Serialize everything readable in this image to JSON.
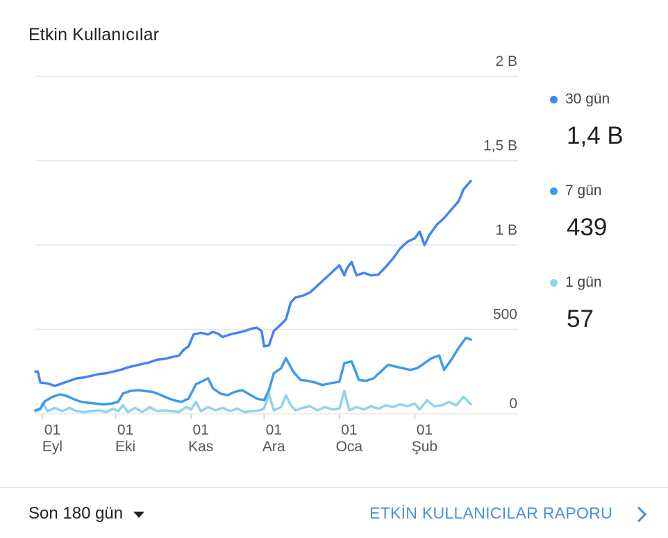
{
  "card": {
    "title": "Etkin Kullanıcılar"
  },
  "chart_data": {
    "type": "line",
    "ylim": [
      0,
      2000
    ],
    "y_ticks": [
      {
        "value": 0,
        "label": "0"
      },
      {
        "value": 500,
        "label": "500"
      },
      {
        "value": 1000,
        "label": "1 B"
      },
      {
        "value": 1500,
        "label": "1,5 B"
      },
      {
        "value": 2000,
        "label": "2 B"
      }
    ],
    "x_range": [
      "2023-08-29",
      "2024-02-24"
    ],
    "x_ticks": [
      {
        "date": "2023-09-01",
        "day": "01",
        "month": "Eyl"
      },
      {
        "date": "2023-10-01",
        "day": "01",
        "month": "Eki"
      },
      {
        "date": "2023-11-01",
        "day": "01",
        "month": "Kas"
      },
      {
        "date": "2023-12-01",
        "day": "01",
        "month": "Ara"
      },
      {
        "date": "2024-01-01",
        "day": "01",
        "month": "Oca"
      },
      {
        "date": "2024-02-01",
        "day": "01",
        "month": "Şub"
      }
    ],
    "grid": true,
    "legend_position": "right",
    "series": [
      {
        "name": "30 gün",
        "color": "#4285f4",
        "current_label": "1,4 B",
        "points": [
          [
            "2023-08-29",
            250
          ],
          [
            "2023-08-30",
            250
          ],
          [
            "2023-08-31",
            185
          ],
          [
            "2023-09-03",
            180
          ],
          [
            "2023-09-06",
            165
          ],
          [
            "2023-09-09",
            180
          ],
          [
            "2023-09-12",
            195
          ],
          [
            "2023-09-15",
            210
          ],
          [
            "2023-09-18",
            215
          ],
          [
            "2023-09-21",
            225
          ],
          [
            "2023-09-24",
            235
          ],
          [
            "2023-09-27",
            240
          ],
          [
            "2023-09-30",
            250
          ],
          [
            "2023-10-03",
            260
          ],
          [
            "2023-10-06",
            275
          ],
          [
            "2023-10-09",
            285
          ],
          [
            "2023-10-12",
            295
          ],
          [
            "2023-10-15",
            305
          ],
          [
            "2023-10-18",
            320
          ],
          [
            "2023-10-21",
            325
          ],
          [
            "2023-10-24",
            335
          ],
          [
            "2023-10-27",
            345
          ],
          [
            "2023-10-29",
            380
          ],
          [
            "2023-10-31",
            400
          ],
          [
            "2023-11-02",
            470
          ],
          [
            "2023-11-05",
            480
          ],
          [
            "2023-11-08",
            470
          ],
          [
            "2023-11-10",
            485
          ],
          [
            "2023-11-12",
            475
          ],
          [
            "2023-11-14",
            455
          ],
          [
            "2023-11-17",
            470
          ],
          [
            "2023-11-20",
            480
          ],
          [
            "2023-11-23",
            490
          ],
          [
            "2023-11-26",
            505
          ],
          [
            "2023-11-28",
            510
          ],
          [
            "2023-11-30",
            490
          ],
          [
            "2023-12-01",
            400
          ],
          [
            "2023-12-03",
            405
          ],
          [
            "2023-12-05",
            490
          ],
          [
            "2023-12-08",
            530
          ],
          [
            "2023-12-10",
            560
          ],
          [
            "2023-12-12",
            660
          ],
          [
            "2023-12-14",
            690
          ],
          [
            "2023-12-17",
            700
          ],
          [
            "2023-12-20",
            720
          ],
          [
            "2023-12-23",
            760
          ],
          [
            "2023-12-26",
            800
          ],
          [
            "2023-12-29",
            840
          ],
          [
            "2024-01-01",
            880
          ],
          [
            "2024-01-03",
            820
          ],
          [
            "2024-01-04",
            860
          ],
          [
            "2024-01-06",
            900
          ],
          [
            "2024-01-08",
            820
          ],
          [
            "2024-01-11",
            835
          ],
          [
            "2024-01-14",
            820
          ],
          [
            "2024-01-17",
            825
          ],
          [
            "2024-01-20",
            870
          ],
          [
            "2024-01-23",
            920
          ],
          [
            "2024-01-26",
            980
          ],
          [
            "2024-01-29",
            1020
          ],
          [
            "2024-02-01",
            1040
          ],
          [
            "2024-02-03",
            1080
          ],
          [
            "2024-02-05",
            1000
          ],
          [
            "2024-02-07",
            1060
          ],
          [
            "2024-02-10",
            1120
          ],
          [
            "2024-02-13",
            1160
          ],
          [
            "2024-02-16",
            1210
          ],
          [
            "2024-02-19",
            1260
          ],
          [
            "2024-02-21",
            1330
          ],
          [
            "2024-02-24",
            1380
          ]
        ]
      },
      {
        "name": "7 gün",
        "color": "#3d9be9",
        "current_label": "439",
        "points": [
          [
            "2023-08-29",
            20
          ],
          [
            "2023-08-31",
            30
          ],
          [
            "2023-09-02",
            75
          ],
          [
            "2023-09-05",
            100
          ],
          [
            "2023-09-08",
            115
          ],
          [
            "2023-09-11",
            105
          ],
          [
            "2023-09-14",
            85
          ],
          [
            "2023-09-17",
            70
          ],
          [
            "2023-09-20",
            65
          ],
          [
            "2023-09-23",
            60
          ],
          [
            "2023-09-26",
            55
          ],
          [
            "2023-09-29",
            60
          ],
          [
            "2023-10-02",
            70
          ],
          [
            "2023-10-04",
            120
          ],
          [
            "2023-10-07",
            135
          ],
          [
            "2023-10-10",
            140
          ],
          [
            "2023-10-13",
            135
          ],
          [
            "2023-10-16",
            130
          ],
          [
            "2023-10-19",
            115
          ],
          [
            "2023-10-22",
            95
          ],
          [
            "2023-10-25",
            80
          ],
          [
            "2023-10-28",
            70
          ],
          [
            "2023-10-31",
            90
          ],
          [
            "2023-11-03",
            175
          ],
          [
            "2023-11-06",
            195
          ],
          [
            "2023-11-08",
            210
          ],
          [
            "2023-11-10",
            150
          ],
          [
            "2023-11-13",
            120
          ],
          [
            "2023-11-16",
            110
          ],
          [
            "2023-11-19",
            130
          ],
          [
            "2023-11-22",
            140
          ],
          [
            "2023-11-25",
            115
          ],
          [
            "2023-11-28",
            90
          ],
          [
            "2023-12-01",
            80
          ],
          [
            "2023-12-03",
            140
          ],
          [
            "2023-12-05",
            240
          ],
          [
            "2023-12-08",
            270
          ],
          [
            "2023-12-10",
            330
          ],
          [
            "2023-12-13",
            250
          ],
          [
            "2023-12-16",
            200
          ],
          [
            "2023-12-19",
            195
          ],
          [
            "2023-12-22",
            185
          ],
          [
            "2023-12-25",
            170
          ],
          [
            "2023-12-28",
            180
          ],
          [
            "2024-01-01",
            190
          ],
          [
            "2024-01-03",
            300
          ],
          [
            "2024-01-06",
            310
          ],
          [
            "2024-01-09",
            200
          ],
          [
            "2024-01-12",
            195
          ],
          [
            "2024-01-15",
            210
          ],
          [
            "2024-01-18",
            250
          ],
          [
            "2024-01-21",
            290
          ],
          [
            "2024-01-24",
            280
          ],
          [
            "2024-01-27",
            270
          ],
          [
            "2024-01-30",
            260
          ],
          [
            "2024-02-02",
            270
          ],
          [
            "2024-02-05",
            300
          ],
          [
            "2024-02-08",
            330
          ],
          [
            "2024-02-11",
            345
          ],
          [
            "2024-02-13",
            260
          ],
          [
            "2024-02-16",
            320
          ],
          [
            "2024-02-19",
            390
          ],
          [
            "2024-02-22",
            450
          ],
          [
            "2024-02-24",
            439
          ]
        ]
      },
      {
        "name": "1 gün",
        "color": "#8fd4ea",
        "current_label": "57",
        "points": [
          [
            "2023-08-29",
            15
          ],
          [
            "2023-08-31",
            25
          ],
          [
            "2023-09-01",
            65
          ],
          [
            "2023-09-03",
            15
          ],
          [
            "2023-09-06",
            35
          ],
          [
            "2023-09-09",
            15
          ],
          [
            "2023-09-12",
            35
          ],
          [
            "2023-09-15",
            15
          ],
          [
            "2023-09-18",
            10
          ],
          [
            "2023-09-21",
            15
          ],
          [
            "2023-09-24",
            20
          ],
          [
            "2023-09-27",
            10
          ],
          [
            "2023-09-30",
            30
          ],
          [
            "2023-10-02",
            15
          ],
          [
            "2023-10-04",
            50
          ],
          [
            "2023-10-06",
            10
          ],
          [
            "2023-10-09",
            35
          ],
          [
            "2023-10-12",
            10
          ],
          [
            "2023-10-15",
            40
          ],
          [
            "2023-10-18",
            15
          ],
          [
            "2023-10-21",
            20
          ],
          [
            "2023-10-24",
            15
          ],
          [
            "2023-10-27",
            10
          ],
          [
            "2023-10-30",
            40
          ],
          [
            "2023-11-01",
            25
          ],
          [
            "2023-11-03",
            70
          ],
          [
            "2023-11-05",
            15
          ],
          [
            "2023-11-08",
            40
          ],
          [
            "2023-11-11",
            20
          ],
          [
            "2023-11-14",
            35
          ],
          [
            "2023-11-17",
            15
          ],
          [
            "2023-11-20",
            30
          ],
          [
            "2023-11-23",
            10
          ],
          [
            "2023-11-26",
            15
          ],
          [
            "2023-11-29",
            20
          ],
          [
            "2023-12-01",
            30
          ],
          [
            "2023-12-03",
            120
          ],
          [
            "2023-12-05",
            20
          ],
          [
            "2023-12-08",
            40
          ],
          [
            "2023-12-10",
            110
          ],
          [
            "2023-12-12",
            50
          ],
          [
            "2023-12-14",
            20
          ],
          [
            "2023-12-17",
            35
          ],
          [
            "2023-12-20",
            45
          ],
          [
            "2023-12-23",
            20
          ],
          [
            "2023-12-26",
            40
          ],
          [
            "2023-12-29",
            25
          ],
          [
            "2024-01-01",
            30
          ],
          [
            "2024-01-03",
            135
          ],
          [
            "2024-01-05",
            20
          ],
          [
            "2024-01-08",
            40
          ],
          [
            "2024-01-11",
            25
          ],
          [
            "2024-01-14",
            45
          ],
          [
            "2024-01-17",
            30
          ],
          [
            "2024-01-20",
            50
          ],
          [
            "2024-01-23",
            40
          ],
          [
            "2024-01-26",
            55
          ],
          [
            "2024-01-29",
            45
          ],
          [
            "2024-02-01",
            60
          ],
          [
            "2024-02-03",
            25
          ],
          [
            "2024-02-06",
            80
          ],
          [
            "2024-02-09",
            45
          ],
          [
            "2024-02-12",
            50
          ],
          [
            "2024-02-15",
            70
          ],
          [
            "2024-02-18",
            50
          ],
          [
            "2024-02-21",
            100
          ],
          [
            "2024-02-24",
            57
          ]
        ]
      }
    ]
  },
  "footer": {
    "date_range_label": "Son 180 gün",
    "report_link_label": "ETKİN KULLANICILAR RAPORU"
  }
}
